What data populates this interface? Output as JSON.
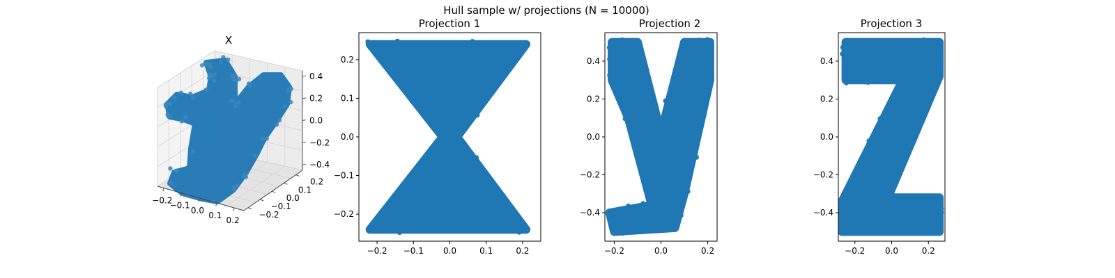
{
  "figure": {
    "suptitle": "Hull sample w/ projections (N = 10000)"
  },
  "colors": {
    "points": "#1f77b4",
    "axes": "#000000",
    "pane": "#f2f2f2",
    "grid": "#d6d6d6"
  },
  "chart_data": [
    {
      "type": "scatter",
      "subtype": "3d",
      "title": "X",
      "n_points": 10000,
      "xticks": [
        "−0.2",
        "−0.1",
        "0.0",
        "0.1",
        "0.2"
      ],
      "yticks": [
        "−0.2",
        "−0.1",
        "0.0",
        "0.1",
        "0.2"
      ],
      "zticks": [
        "0.4",
        "0.2",
        "0.0",
        "−0.2",
        "−0.4"
      ],
      "xlim": [
        -0.25,
        0.25
      ],
      "ylim": [
        -0.25,
        0.25
      ],
      "zlim": [
        -0.5,
        0.5
      ],
      "grid": true
    },
    {
      "type": "scatter",
      "title": "Projection 1",
      "shape": "hourglass",
      "n_points": 10000,
      "xlim": [
        -0.25,
        0.25
      ],
      "ylim": [
        -0.27,
        0.27
      ],
      "xticks": [
        -0.2,
        -0.1,
        0.0,
        0.1,
        0.2
      ],
      "yticks": [
        -0.2,
        -0.1,
        0.0,
        0.1,
        0.2
      ],
      "xtick_labels": [
        "−0.2",
        "−0.1",
        "0.0",
        "0.1",
        "0.2"
      ],
      "ytick_labels": [
        "−0.2",
        "−0.1",
        "0.0",
        "0.1",
        "0.2"
      ],
      "outline": [
        [
          -0.22,
          0.24
        ],
        [
          0.21,
          0.24
        ],
        [
          0.02,
          0.0
        ],
        [
          0.21,
          -0.24
        ],
        [
          -0.22,
          -0.24
        ],
        [
          -0.02,
          0.0
        ]
      ],
      "grid": false
    },
    {
      "type": "scatter",
      "title": "Projection 2",
      "shape": "letter-y",
      "n_points": 10000,
      "xlim": [
        -0.24,
        0.24
      ],
      "ylim": [
        -0.55,
        0.55
      ],
      "xticks": [
        -0.2,
        0.0,
        0.2
      ],
      "yticks": [
        -0.4,
        -0.2,
        0.0,
        0.2,
        0.4
      ],
      "xtick_labels": [
        "−0.2",
        "0.0",
        "0.2"
      ],
      "ytick_labels": [
        "−0.4",
        "−0.2",
        "0.0",
        "0.2",
        "0.4"
      ],
      "outline": [
        [
          -0.21,
          0.5
        ],
        [
          -0.1,
          0.5
        ],
        [
          0.0,
          0.02
        ],
        [
          0.1,
          0.5
        ],
        [
          0.21,
          0.5
        ],
        [
          0.21,
          0.3
        ],
        [
          0.1,
          -0.3
        ],
        [
          0.06,
          -0.48
        ],
        [
          -0.2,
          -0.5
        ],
        [
          -0.22,
          -0.4
        ],
        [
          -0.04,
          -0.36
        ],
        [
          -0.14,
          0.1
        ],
        [
          -0.21,
          0.3
        ]
      ],
      "grid": false
    },
    {
      "type": "scatter",
      "title": "Projection 3",
      "shape": "letter-z",
      "n_points": 10000,
      "xlim": [
        -0.29,
        0.29
      ],
      "ylim": [
        -0.55,
        0.55
      ],
      "xticks": [
        -0.2,
        0.0,
        0.2
      ],
      "yticks": [
        -0.4,
        -0.2,
        0.0,
        0.2,
        0.4
      ],
      "xtick_labels": [
        "−0.2",
        "0.0",
        "0.2"
      ],
      "ytick_labels": [
        "−0.4",
        "−0.2",
        "0.0",
        "0.2",
        "0.4"
      ],
      "outline": [
        [
          -0.25,
          0.5
        ],
        [
          0.26,
          0.5
        ],
        [
          0.26,
          0.32
        ],
        [
          -0.02,
          -0.32
        ],
        [
          0.26,
          -0.32
        ],
        [
          0.26,
          -0.5
        ],
        [
          -0.27,
          -0.5
        ],
        [
          -0.27,
          -0.34
        ],
        [
          0.06,
          0.3
        ],
        [
          -0.25,
          0.3
        ]
      ],
      "grid": false
    }
  ]
}
